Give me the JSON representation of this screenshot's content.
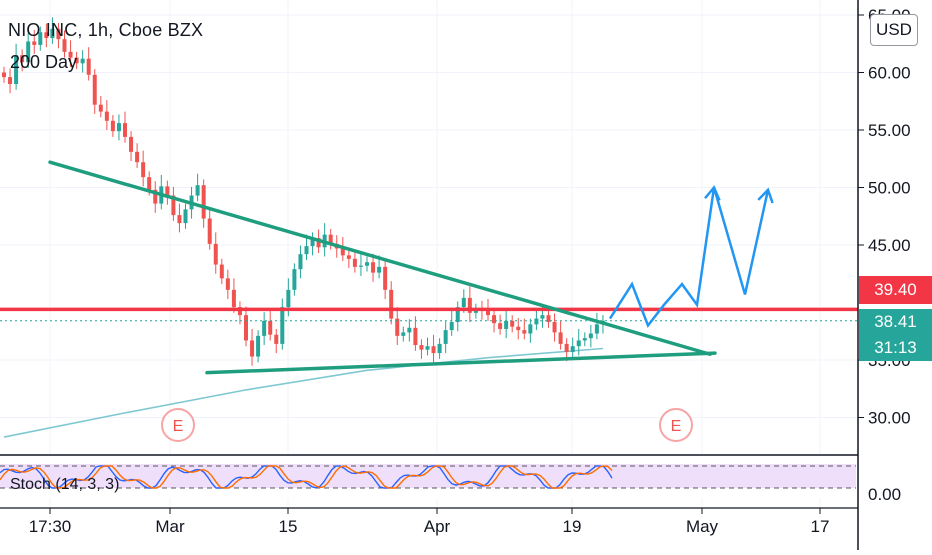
{
  "header": {
    "title": "NIO INC, 1h, Cboe BZX",
    "indicator": "200 Day",
    "currency": "USD"
  },
  "stoch": {
    "label": "Stoch (14, 3, 3)",
    "axis_label": "0.00"
  },
  "tags": {
    "resistance": "39.40",
    "last_price": "38.41",
    "countdown": "31:13"
  },
  "earnings_marker": "E",
  "colors": {
    "up": "#26a69a",
    "down": "#ef5350",
    "trendline": "#1e9e7e",
    "resistance": "#f23645",
    "projection": "#2196f3",
    "ma": "#7ec8d2",
    "stoch_bg": "#e1c4f7",
    "last_price": "#26a69a"
  },
  "chart_data": {
    "type": "candlestick",
    "x_ticks": [
      "17:30",
      "Mar",
      "15",
      "Apr",
      "19",
      "May",
      "17"
    ],
    "y_ticks": [
      65,
      60,
      55,
      50,
      45,
      35,
      30
    ],
    "ylim": [
      28.5,
      65.5
    ],
    "price_series": [
      [
        0,
        59.6
      ],
      [
        1,
        59.0
      ],
      [
        2,
        61.5
      ],
      [
        3,
        60.9
      ],
      [
        4,
        62.7
      ],
      [
        5,
        62.4
      ],
      [
        6,
        63.5
      ],
      [
        7,
        63.0
      ],
      [
        8,
        63.8
      ],
      [
        9,
        62.9
      ],
      [
        10,
        61.8
      ],
      [
        11,
        61.3
      ],
      [
        12,
        60.8
      ],
      [
        13,
        61.2
      ],
      [
        14,
        59.8
      ],
      [
        15,
        57.2
      ],
      [
        16,
        56.6
      ],
      [
        17,
        55.8
      ],
      [
        18,
        54.9
      ],
      [
        19,
        55.6
      ],
      [
        20,
        54.4
      ],
      [
        21,
        53.1
      ],
      [
        22,
        52.2
      ],
      [
        23,
        50.9
      ],
      [
        24,
        49.8
      ],
      [
        25,
        48.6
      ],
      [
        26,
        50.1
      ],
      [
        27,
        49.3
      ],
      [
        28,
        47.6
      ],
      [
        29,
        46.9
      ],
      [
        30,
        48.1
      ],
      [
        31,
        49.3
      ],
      [
        32,
        50.2
      ],
      [
        33,
        47.3
      ],
      [
        34,
        45.1
      ],
      [
        35,
        43.3
      ],
      [
        36,
        42.1
      ],
      [
        37,
        41.1
      ],
      [
        38,
        39.6
      ],
      [
        39,
        38.9
      ],
      [
        40,
        36.7
      ],
      [
        41,
        35.3
      ],
      [
        42,
        37.1
      ],
      [
        43,
        38.4
      ],
      [
        44,
        37.2
      ],
      [
        45,
        36.4
      ],
      [
        46,
        39.6
      ],
      [
        47,
        41.1
      ],
      [
        48,
        42.9
      ],
      [
        49,
        44.2
      ],
      [
        50,
        44.9
      ],
      [
        51,
        45.6
      ],
      [
        52,
        44.8
      ],
      [
        53,
        45.9
      ],
      [
        54,
        45.1
      ],
      [
        55,
        44.7
      ],
      [
        56,
        44.1
      ],
      [
        57,
        43.8
      ],
      [
        58,
        43.1
      ],
      [
        59,
        43.2
      ],
      [
        60,
        43.5
      ],
      [
        61,
        42.6
      ],
      [
        62,
        43.1
      ],
      [
        63,
        41.1
      ],
      [
        64,
        38.6
      ],
      [
        65,
        37.1
      ],
      [
        66,
        37.4
      ],
      [
        67,
        37.8
      ],
      [
        68,
        36.3
      ],
      [
        69,
        35.9
      ],
      [
        70,
        36.2
      ],
      [
        71,
        35.6
      ],
      [
        72,
        36.4
      ],
      [
        73,
        37.6
      ],
      [
        74,
        38.3
      ],
      [
        75,
        39.6
      ],
      [
        76,
        40.4
      ],
      [
        77,
        39.1
      ],
      [
        78,
        39.4
      ],
      [
        79,
        39.3
      ],
      [
        80,
        38.9
      ],
      [
        81,
        38.2
      ],
      [
        82,
        37.7
      ],
      [
        83,
        38.4
      ],
      [
        84,
        37.9
      ],
      [
        85,
        37.6
      ],
      [
        86,
        37.3
      ],
      [
        87,
        38.1
      ],
      [
        88,
        38.6
      ],
      [
        89,
        38.9
      ],
      [
        90,
        38.3
      ],
      [
        91,
        37.4
      ],
      [
        92,
        36.4
      ],
      [
        93,
        35.7
      ],
      [
        94,
        36.2
      ],
      [
        95,
        36.7
      ],
      [
        96,
        36.9
      ],
      [
        97,
        37.3
      ],
      [
        98,
        38.1
      ],
      [
        99,
        38.41
      ]
    ],
    "moving_average_200": [
      [
        0,
        28.3
      ],
      [
        20,
        30.4
      ],
      [
        40,
        32.4
      ],
      [
        60,
        34.1
      ],
      [
        80,
        35.2
      ],
      [
        99,
        36.0
      ]
    ],
    "trendlines": [
      {
        "from": [
          50.0,
          52.2
        ],
        "to": [
          710.0,
          35.5
        ]
      },
      {
        "from": [
          207.0,
          33.9
        ],
        "to": [
          715.0,
          35.6
        ]
      }
    ],
    "horizontal_levels": [
      39.4,
      38.41
    ],
    "projection": [
      [
        610,
        38.6
      ],
      [
        632,
        41.6
      ],
      [
        648,
        38.0
      ],
      [
        664,
        39.8
      ],
      [
        682,
        41.6
      ],
      [
        697,
        39.8
      ],
      [
        714,
        50.0
      ],
      [
        745,
        40.7
      ],
      [
        768,
        49.8
      ]
    ],
    "earnings_events": [
      "E",
      "E"
    ],
    "stoch_overbought": 80,
    "stoch_oversold": 20
  }
}
